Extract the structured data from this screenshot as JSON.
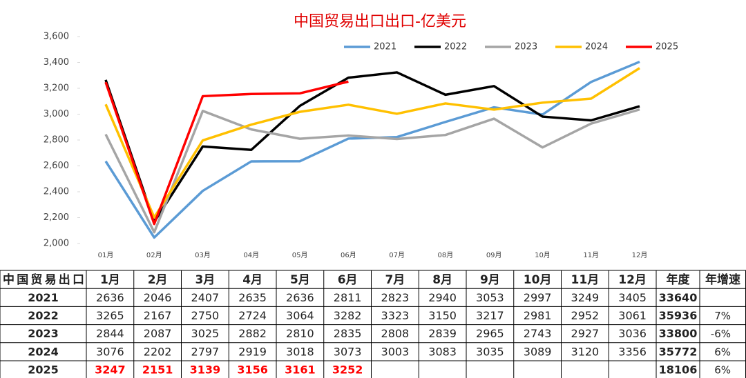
{
  "chart_data": {
    "type": "line",
    "title": "中国贸易出口出口-亿美元",
    "categories": [
      "01月",
      "02月",
      "03月",
      "04月",
      "05月",
      "06月",
      "07月",
      "08月",
      "09月",
      "10月",
      "11月",
      "12月"
    ],
    "series": [
      {
        "name": "2021",
        "color": "#5b9bd5",
        "values": [
          2636,
          2046,
          2407,
          2635,
          2636,
          2811,
          2823,
          2940,
          3053,
          2997,
          3249,
          3405
        ]
      },
      {
        "name": "2022",
        "color": "#000000",
        "values": [
          3265,
          2167,
          2750,
          2724,
          3064,
          3282,
          3323,
          3150,
          3217,
          2981,
          2952,
          3061
        ]
      },
      {
        "name": "2023",
        "color": "#a5a5a5",
        "values": [
          2844,
          2087,
          3025,
          2882,
          2810,
          2835,
          2808,
          2839,
          2965,
          2743,
          2927,
          3036
        ]
      },
      {
        "name": "2024",
        "color": "#ffc000",
        "values": [
          3076,
          2202,
          2797,
          2919,
          3018,
          3073,
          3003,
          3083,
          3035,
          3089,
          3120,
          3356
        ]
      },
      {
        "name": "2025",
        "color": "#ff0000",
        "values": [
          3247,
          2151,
          3139,
          3156,
          3161,
          3252,
          null,
          null,
          null,
          null,
          null,
          null
        ]
      }
    ],
    "ylim": [
      2000,
      3600
    ],
    "yticks": [
      {
        "value": 2000,
        "label": "2,000"
      },
      {
        "value": 2200,
        "label": "2,200"
      },
      {
        "value": 2400,
        "label": "2,400"
      },
      {
        "value": 2600,
        "label": "2,600"
      },
      {
        "value": 2800,
        "label": "2,800"
      },
      {
        "value": 3000,
        "label": "3,000"
      },
      {
        "value": 3200,
        "label": "3,200"
      },
      {
        "value": 3400,
        "label": "3,400"
      },
      {
        "value": 3600,
        "label": "3,600"
      }
    ],
    "grid": false,
    "legend": "top-right"
  },
  "table": {
    "header": [
      "中国贸易出口",
      "1月",
      "2月",
      "3月",
      "4月",
      "5月",
      "6月",
      "7月",
      "8月",
      "9月",
      "10月",
      "11月",
      "12月",
      "年度",
      "年增速"
    ],
    "rows": [
      {
        "year": "2021",
        "months": [
          2636,
          2046,
          2407,
          2635,
          2636,
          2811,
          2823,
          2940,
          3053,
          2997,
          3249,
          3405
        ],
        "total": 33640
      },
      {
        "year": "2022",
        "months": [
          3265,
          2167,
          2750,
          2724,
          3064,
          3282,
          3323,
          3150,
          3217,
          2981,
          2952,
          3061
        ],
        "total": 35936,
        "growth": "7%"
      },
      {
        "year": "2023",
        "months": [
          2844,
          2087,
          3025,
          2882,
          2810,
          2835,
          2808,
          2839,
          2965,
          2743,
          2927,
          3036
        ],
        "total": 33800,
        "growth": "-6%"
      },
      {
        "year": "2024",
        "months": [
          3076,
          2202,
          2797,
          2919,
          3018,
          3073,
          3003,
          3083,
          3035,
          3089,
          3120,
          3356
        ],
        "total": 35772,
        "growth": "6%"
      },
      {
        "year": "2025",
        "months": [
          3247,
          2151,
          3139,
          3156,
          3161,
          3252
        ],
        "total": 18106,
        "growth": "6%"
      }
    ]
  }
}
